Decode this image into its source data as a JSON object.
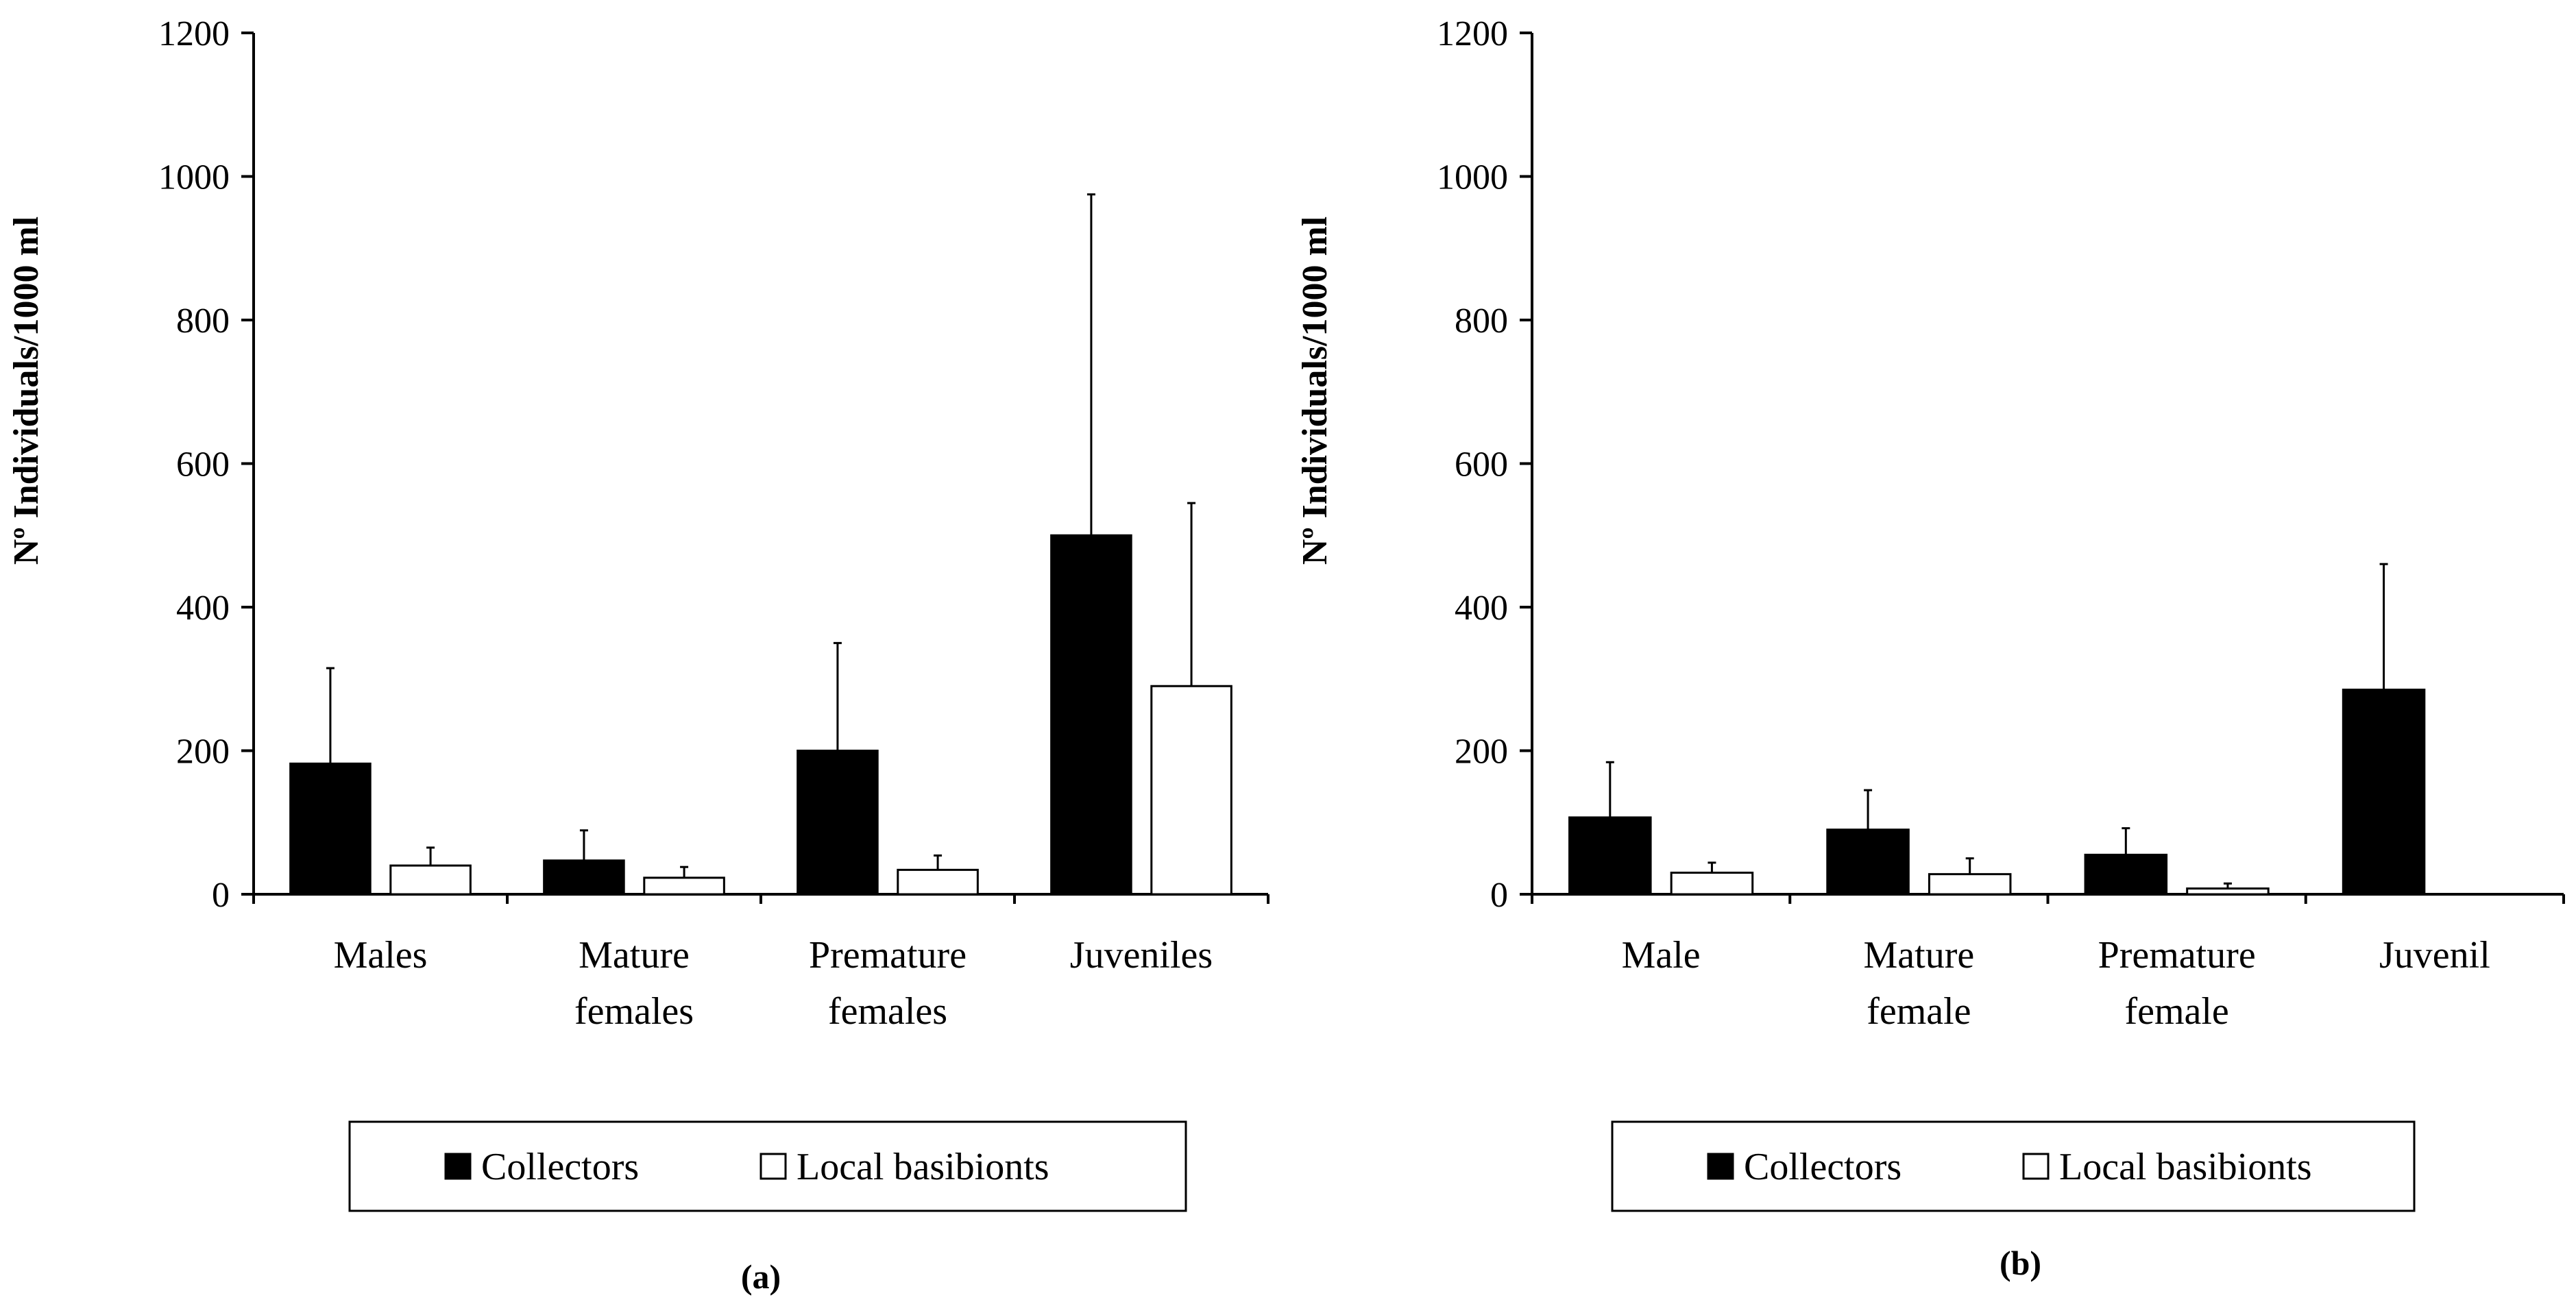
{
  "figure": {
    "background": "#ffffff",
    "bar_dark": "#000000",
    "bar_light": "#ffffff"
  },
  "chart_data": [
    {
      "type": "bar",
      "panel_label": "(a)",
      "ylabel": "Nº Individuals/1000 ml",
      "ylim": [
        0,
        1200
      ],
      "yticks": [
        "0",
        "200",
        "400",
        "600",
        "800",
        "1000",
        "1200"
      ],
      "categories": [
        [
          "Males"
        ],
        [
          "Mature",
          "females"
        ],
        [
          "Premature",
          "females"
        ],
        [
          "Juveniles"
        ]
      ],
      "series": [
        {
          "name": "Collectors",
          "values": [
            182,
            47,
            200,
            500
          ],
          "errors": [
            133,
            42,
            150,
            475
          ]
        },
        {
          "name": "Local basibionts",
          "values": [
            40,
            23,
            34,
            290
          ],
          "errors": [
            25,
            15,
            20,
            255
          ]
        }
      ],
      "legend": [
        "Collectors",
        "Local basibionts"
      ]
    },
    {
      "type": "bar",
      "panel_label": "(b)",
      "ylabel": "Nº Individuals/1000 ml",
      "ylim": [
        0,
        1200
      ],
      "yticks": [
        "0",
        "200",
        "400",
        "600",
        "800",
        "1000",
        "1200"
      ],
      "categories": [
        [
          "Male"
        ],
        [
          "Mature",
          "female"
        ],
        [
          "Premature",
          "female"
        ],
        [
          "Juvenil"
        ]
      ],
      "series": [
        {
          "name": "Collectors",
          "values": [
            107,
            90,
            55,
            285
          ],
          "errors": [
            77,
            55,
            37,
            175
          ]
        },
        {
          "name": "Local basibionts",
          "values": [
            30,
            28,
            8,
            0
          ],
          "errors": [
            14,
            22,
            7,
            0
          ]
        }
      ],
      "legend": [
        "Collectors",
        "Local basibionts"
      ]
    }
  ]
}
